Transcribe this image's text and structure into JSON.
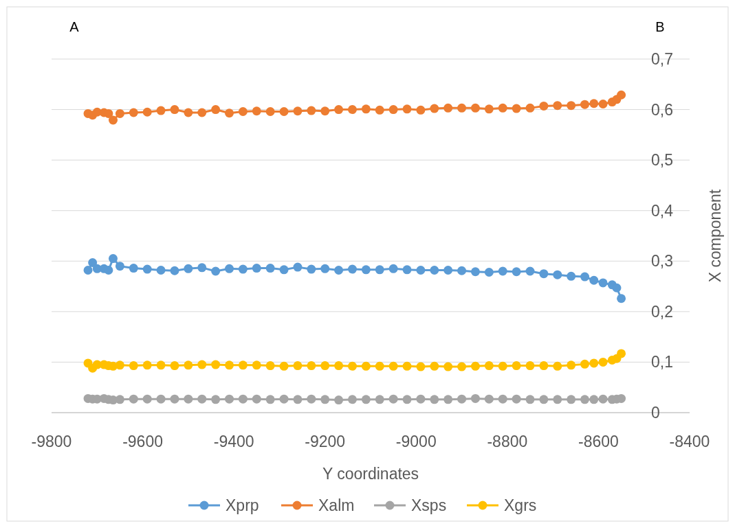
{
  "chart_data": {
    "type": "line",
    "xlabel": "Y coordinates",
    "ylabel": "X component",
    "annotations": [
      "A",
      "B"
    ],
    "x": [
      -9720,
      -9710,
      -9700,
      -9685,
      -9675,
      -9665,
      -9650,
      -9620,
      -9590,
      -9560,
      -9530,
      -9500,
      -9470,
      -9440,
      -9410,
      -9380,
      -9350,
      -9320,
      -9290,
      -9260,
      -9230,
      -9200,
      -9170,
      -9140,
      -9110,
      -9080,
      -9050,
      -9020,
      -8990,
      -8960,
      -8930,
      -8900,
      -8870,
      -8840,
      -8810,
      -8780,
      -8750,
      -8720,
      -8690,
      -8660,
      -8630,
      -8610,
      -8590,
      -8570,
      -8560,
      -8550
    ],
    "series": [
      {
        "name": "Xprp",
        "color": "#5b9bd5",
        "values": [
          0.282,
          0.297,
          0.285,
          0.285,
          0.282,
          0.305,
          0.29,
          0.286,
          0.284,
          0.282,
          0.281,
          0.285,
          0.287,
          0.28,
          0.285,
          0.284,
          0.286,
          0.286,
          0.283,
          0.288,
          0.284,
          0.285,
          0.282,
          0.284,
          0.283,
          0.283,
          0.285,
          0.283,
          0.282,
          0.282,
          0.282,
          0.281,
          0.279,
          0.278,
          0.28,
          0.279,
          0.28,
          0.275,
          0.273,
          0.27,
          0.269,
          0.262,
          0.257,
          0.253,
          0.247,
          0.226
        ]
      },
      {
        "name": "Xalm",
        "color": "#ed7d31",
        "values": [
          0.592,
          0.589,
          0.595,
          0.594,
          0.592,
          0.579,
          0.592,
          0.594,
          0.595,
          0.598,
          0.6,
          0.594,
          0.594,
          0.6,
          0.593,
          0.596,
          0.597,
          0.596,
          0.596,
          0.597,
          0.598,
          0.597,
          0.6,
          0.6,
          0.601,
          0.599,
          0.6,
          0.601,
          0.599,
          0.602,
          0.603,
          0.603,
          0.603,
          0.601,
          0.603,
          0.602,
          0.603,
          0.607,
          0.608,
          0.608,
          0.61,
          0.612,
          0.611,
          0.615,
          0.62,
          0.629
        ]
      },
      {
        "name": "Xsps",
        "color": "#a5a5a5",
        "values": [
          0.028,
          0.027,
          0.027,
          0.028,
          0.026,
          0.025,
          0.026,
          0.027,
          0.027,
          0.027,
          0.027,
          0.027,
          0.027,
          0.026,
          0.027,
          0.027,
          0.027,
          0.026,
          0.027,
          0.026,
          0.027,
          0.026,
          0.025,
          0.026,
          0.026,
          0.026,
          0.027,
          0.026,
          0.027,
          0.026,
          0.026,
          0.027,
          0.028,
          0.027,
          0.027,
          0.027,
          0.026,
          0.026,
          0.026,
          0.026,
          0.026,
          0.026,
          0.027,
          0.026,
          0.027,
          0.028
        ]
      },
      {
        "name": "Xgrs",
        "color": "#ffc000",
        "values": [
          0.098,
          0.088,
          0.095,
          0.095,
          0.093,
          0.092,
          0.094,
          0.093,
          0.094,
          0.094,
          0.093,
          0.094,
          0.095,
          0.095,
          0.094,
          0.094,
          0.094,
          0.093,
          0.092,
          0.093,
          0.093,
          0.093,
          0.093,
          0.092,
          0.092,
          0.092,
          0.092,
          0.092,
          0.091,
          0.092,
          0.091,
          0.091,
          0.092,
          0.093,
          0.092,
          0.093,
          0.093,
          0.093,
          0.092,
          0.094,
          0.096,
          0.098,
          0.1,
          0.104,
          0.107,
          0.117
        ]
      }
    ],
    "xlim": [
      -9800,
      -8400
    ],
    "xticks": [
      -9800,
      -9600,
      -9400,
      -9200,
      -9000,
      -8800,
      -8600,
      -8400
    ],
    "ylim": [
      0,
      0.7
    ],
    "yticks": [
      {
        "value": 0,
        "label": "0"
      },
      {
        "value": 0.1,
        "label": "0,1"
      },
      {
        "value": 0.2,
        "label": "0,2"
      },
      {
        "value": 0.3,
        "label": "0,3"
      },
      {
        "value": 0.4,
        "label": "0,4"
      },
      {
        "value": 0.5,
        "label": "0,5"
      },
      {
        "value": 0.6,
        "label": "0,6"
      },
      {
        "value": 0.7,
        "label": "0,7"
      }
    ],
    "grid": "y",
    "legend": "bottom",
    "marker": "circle",
    "line_style": "solid"
  }
}
